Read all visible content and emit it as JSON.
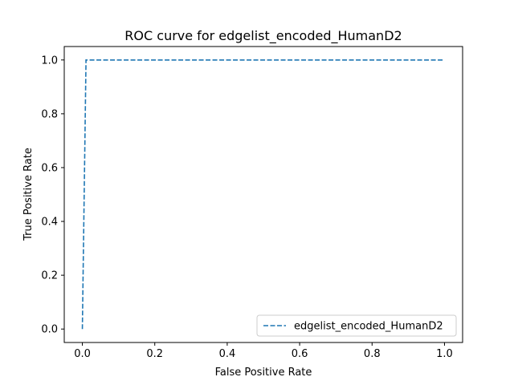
{
  "chart_data": {
    "type": "line",
    "title": "ROC curve for edgelist_encoded_HumanD2",
    "xlabel": "False Positive Rate",
    "ylabel": "True Positive Rate",
    "xlim": [
      -0.05,
      1.05
    ],
    "ylim": [
      -0.05,
      1.05
    ],
    "x_ticks": [
      0.0,
      0.2,
      0.4,
      0.6,
      0.8,
      1.0
    ],
    "x_tick_labels": [
      "0.0",
      "0.2",
      "0.4",
      "0.6",
      "0.8",
      "1.0"
    ],
    "y_ticks": [
      0.0,
      0.2,
      0.4,
      0.6,
      0.8,
      1.0
    ],
    "y_tick_labels": [
      "0.0",
      "0.2",
      "0.4",
      "0.6",
      "0.8",
      "1.0"
    ],
    "grid": false,
    "legend_position": "lower right",
    "series": [
      {
        "name": "edgelist_encoded_HumanD2",
        "color": "#1f77b4",
        "line_style": "dashed",
        "x": [
          0.0,
          0.0,
          0.01,
          0.01,
          1.0
        ],
        "y": [
          0.0,
          0.0,
          0.99,
          1.0,
          1.0
        ]
      }
    ]
  }
}
